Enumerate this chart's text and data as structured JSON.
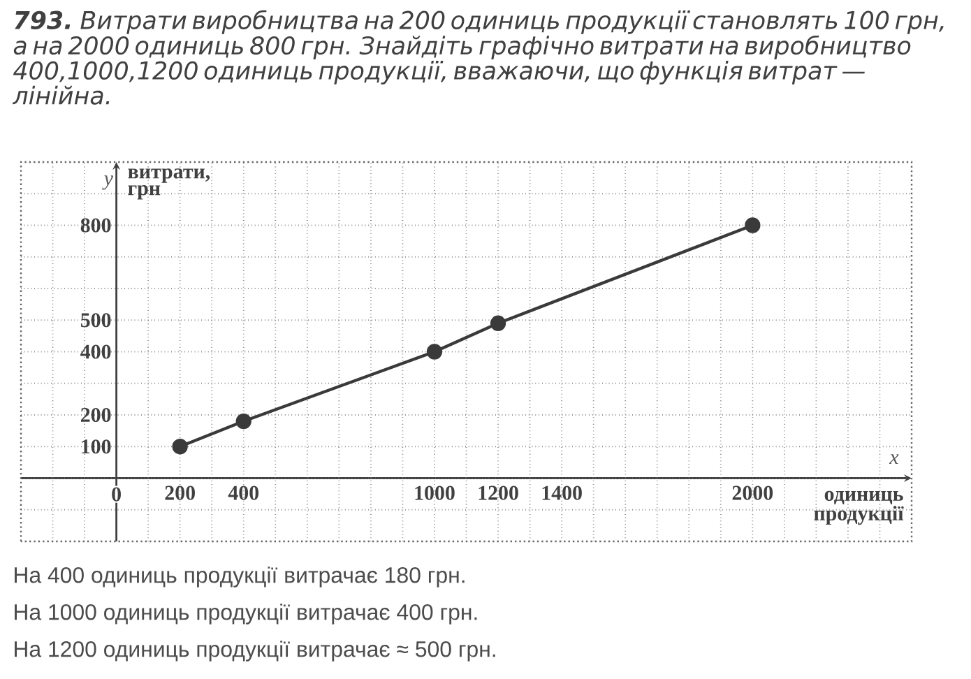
{
  "chart_data": {
    "type": "line",
    "title": "**793.** Витрати виробництва на 200 одиниць продукції становлять 100 грн, а на 2000 одиниць 800 грн. Знайдіть графічно витрати на виробництво 400,1000,1200 одиниць продукції, вважаючи, що функція витрат — лінійна.",
    "xlabel": "одиниць продукції",
    "ylabel": "витрати, грн",
    "annotations": [
      "y",
      "x",
      "На 400 одиниць продукції витрачає 180 грн.",
      "На 1000 одиниць продукції витрачає 400 грн.",
      "На 1200 одиниць продукції витрачає ≈ 500 грн."
    ],
    "x": [
      200,
      400,
      1000,
      1200,
      2000
    ],
    "series": [
      {
        "color": "#3a3a3a",
        "values": [
          100,
          180,
          400,
          490,
          800
        ]
      }
    ],
    "marker": "circle",
    "line_style": "solid",
    "grid": true,
    "xlim": [
      -300,
      2500
    ],
    "ylim": [
      -200,
      1000
    ],
    "xticks": [
      {
        "value": -200,
        "label": null
      },
      {
        "value": -100,
        "label": null
      },
      {
        "value": 0,
        "label": "0"
      },
      {
        "value": 100,
        "label": null
      },
      200,
      400,
      {
        "value": 500,
        "label": null
      },
      {
        "value": 600,
        "label": null
      },
      {
        "value": 700,
        "label": null
      },
      {
        "value": 800,
        "label": null
      },
      {
        "value": 900,
        "label": null
      },
      1000,
      1200,
      1400,
      {
        "value": 1300,
        "label": null
      },
      {
        "value": 1100,
        "label": null
      },
      {
        "value": 1500,
        "label": null
      },
      {
        "value": 1600,
        "label": null
      },
      {
        "value": 1700,
        "label": null
      },
      {
        "value": 1800,
        "label": null
      },
      {
        "value": 1900,
        "label": null
      },
      2000,
      {
        "value": 2100,
        "label": null
      },
      {
        "value": 2200,
        "label": null
      },
      {
        "value": 2300,
        "label": null
      },
      {
        "value": 2400,
        "label": null
      },
      {
        "value": 300,
        "label": null
      }
    ],
    "yticks": [
      {
        "value": -100,
        "label": null
      },
      {
        "value": 0,
        "label": null
      },
      100,
      200,
      {
        "value": 300,
        "label": null
      },
      400,
      500,
      {
        "value": 600,
        "label": null
      },
      {
        "value": 700,
        "label": null
      },
      800,
      {
        "value": 900,
        "label": null
      }
    ]
  }
}
